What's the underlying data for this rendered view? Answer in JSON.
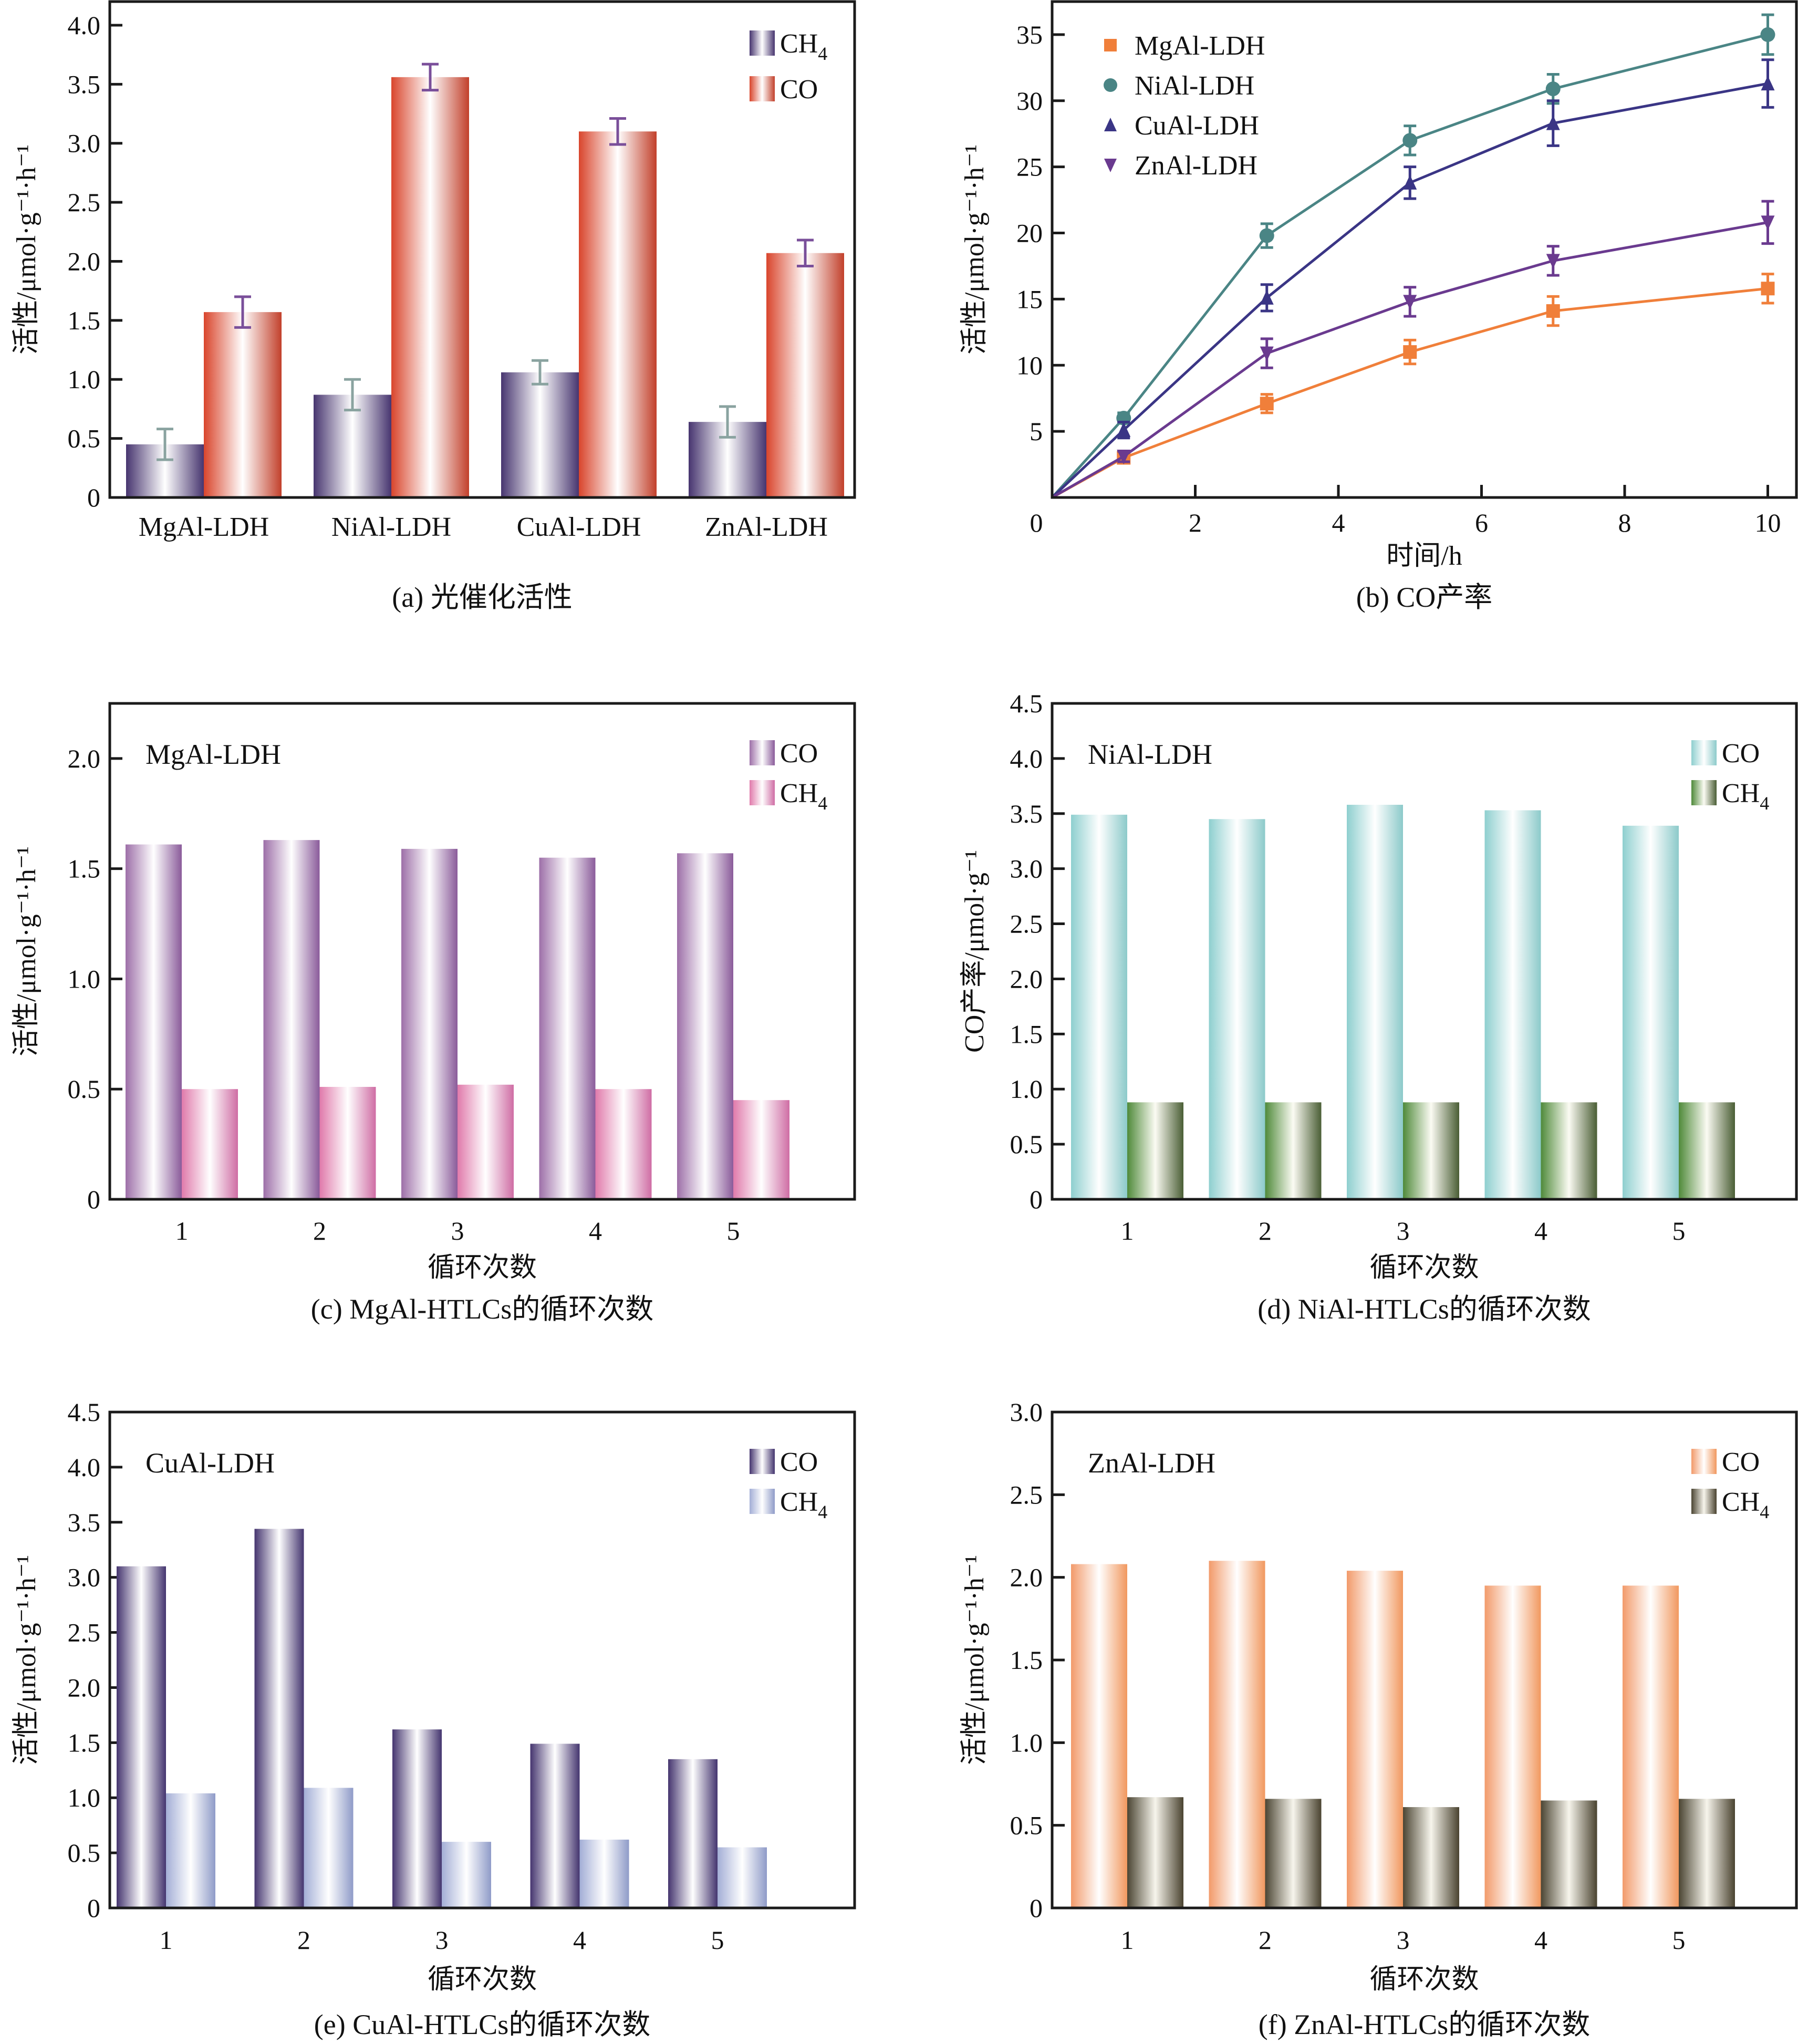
{
  "figure": {
    "panels": [
      "a",
      "b",
      "c",
      "d",
      "e",
      "f"
    ]
  },
  "chart_data": [
    {
      "id": "a",
      "type": "bar",
      "title": "",
      "caption": "(a) 光催化活性",
      "ylabel": "活性/μmol·g⁻¹·h⁻¹",
      "xlabel": "",
      "ylim": [
        0,
        4.2
      ],
      "yticks": [
        0,
        0.5,
        1.0,
        1.5,
        2.0,
        2.5,
        3.0,
        3.5,
        4.0
      ],
      "ytick_labels": [
        "0",
        "0.5",
        "1.0",
        "1.5",
        "2.0",
        "2.5",
        "3.0",
        "3.5",
        "4.0"
      ],
      "categories": [
        "MgAl-LDH",
        "NiAl-LDH",
        "CuAl-LDH",
        "ZnAl-LDH"
      ],
      "series": [
        {
          "name": "CH4",
          "label_main": "CH",
          "label_sub": "4",
          "values": [
            0.45,
            0.87,
            1.06,
            0.64
          ],
          "errors": [
            0.13,
            0.13,
            0.1,
            0.13
          ],
          "colors": [
            "#47356f",
            "#ffffff",
            "#47356f"
          ],
          "error_color": "#8aa3a0"
        },
        {
          "name": "CO",
          "label_main": "CO",
          "label_sub": "",
          "values": [
            1.57,
            3.56,
            3.1,
            2.07
          ],
          "errors": [
            0.13,
            0.11,
            0.11,
            0.11
          ],
          "colors": [
            "#d9452c",
            "#ffffff",
            "#c2402b"
          ],
          "error_color": "#7a4f9a"
        }
      ],
      "legend": "top-right",
      "grid": false
    },
    {
      "id": "b",
      "type": "line",
      "title": "",
      "caption": "(b) CO产率",
      "xlabel": "时间/h",
      "ylabel": "活性/μmol·g⁻¹·h⁻¹",
      "xlim": [
        0,
        10.4
      ],
      "ylim": [
        0,
        37.5
      ],
      "xticks": [
        0,
        2,
        4,
        6,
        8,
        10
      ],
      "xtick_labels": [
        "0",
        "2",
        "4",
        "6",
        "8",
        "10"
      ],
      "yticks": [
        5,
        10,
        15,
        20,
        25,
        30,
        35
      ],
      "ytick_labels": [
        "5",
        "10",
        "15",
        "20",
        "25",
        "30",
        "35"
      ],
      "x": [
        0,
        1,
        3,
        5,
        7,
        10
      ],
      "series": [
        {
          "name": "MgAl-LDH",
          "marker": "square",
          "color": "#f07f3a",
          "values": [
            0,
            3.0,
            7.1,
            11.0,
            14.1,
            15.8
          ],
          "errors": [
            0,
            0.4,
            0.7,
            0.9,
            1.1,
            1.1
          ]
        },
        {
          "name": "NiAl-LDH",
          "marker": "circle",
          "color": "#4a8585",
          "values": [
            0,
            6.0,
            19.8,
            27.0,
            30.9,
            35.0
          ],
          "errors": [
            0,
            0.4,
            0.9,
            1.1,
            1.1,
            1.5
          ]
        },
        {
          "name": "CuAl-LDH",
          "marker": "triangle-up",
          "color": "#3a3585",
          "values": [
            0,
            5.1,
            15.1,
            23.8,
            28.3,
            31.3
          ],
          "errors": [
            0,
            0.6,
            1.0,
            1.2,
            1.7,
            1.8
          ]
        },
        {
          "name": "ZnAl-LDH",
          "marker": "triangle-down",
          "color": "#6a3a8f",
          "values": [
            0,
            3.1,
            10.9,
            14.8,
            17.9,
            20.8
          ],
          "errors": [
            0,
            0.4,
            1.1,
            1.1,
            1.1,
            1.6
          ]
        }
      ],
      "legend": "top-left",
      "grid": false
    },
    {
      "id": "c",
      "type": "bar",
      "title": "MgAl-LDH",
      "caption": "(c) MgAl-HTLCs的循环次数",
      "xlabel": "循环次数",
      "ylabel": "活性/μmol·g⁻¹·h⁻¹",
      "ylim": [
        0,
        2.25
      ],
      "yticks": [
        0,
        0.5,
        1.0,
        1.5,
        2.0
      ],
      "ytick_labels": [
        "0",
        "0.5",
        "1.0",
        "1.5",
        "2.0"
      ],
      "categories": [
        "1",
        "2",
        "3",
        "4",
        "5"
      ],
      "series": [
        {
          "name": "CO",
          "label_main": "CO",
          "label_sub": "",
          "values": [
            1.61,
            1.63,
            1.59,
            1.55,
            1.57
          ],
          "colors": [
            "#9d6fa8",
            "#ffffff",
            "#8a5b9a"
          ]
        },
        {
          "name": "CH4",
          "label_main": "CH",
          "label_sub": "4",
          "values": [
            0.5,
            0.51,
            0.52,
            0.5,
            0.45
          ],
          "colors": [
            "#e07aab",
            "#ffffff",
            "#cf6da4"
          ]
        }
      ],
      "legend": "top-right",
      "grid": false
    },
    {
      "id": "d",
      "type": "bar",
      "title": "NiAl-LDH",
      "caption": "(d) NiAl-HTLCs的循环次数",
      "xlabel": "循环次数",
      "ylabel": "CO产率/μmol·g⁻¹",
      "ylim": [
        0,
        4.5
      ],
      "yticks": [
        0,
        0.5,
        1.0,
        1.5,
        2.0,
        2.5,
        3.0,
        3.5,
        4.0,
        4.5
      ],
      "ytick_labels": [
        "0",
        "0.5",
        "1.0",
        "1.5",
        "2.0",
        "2.5",
        "3.0",
        "3.5",
        "4.0",
        "4.5"
      ],
      "categories": [
        "1",
        "2",
        "3",
        "4",
        "5"
      ],
      "series": [
        {
          "name": "CO",
          "label_main": "CO",
          "label_sub": "",
          "values": [
            3.49,
            3.45,
            3.58,
            3.53,
            3.39
          ],
          "colors": [
            "#8ecfcf",
            "#ffffff",
            "#8ccaca"
          ]
        },
        {
          "name": "CH4",
          "label_main": "CH",
          "label_sub": "4",
          "values": [
            0.88,
            0.88,
            0.88,
            0.88,
            0.88
          ],
          "colors": [
            "#4f8a3a",
            "#fbfbf3",
            "#4a5e35"
          ]
        }
      ],
      "legend": "top-right",
      "grid": false
    },
    {
      "id": "e",
      "type": "bar",
      "title": "CuAl-LDH",
      "caption": "(e) CuAl-HTLCs的循环次数",
      "xlabel": "循环次数",
      "ylabel": "活性/μmol·g⁻¹·h⁻¹",
      "ylim": [
        0,
        4.5
      ],
      "yticks": [
        0,
        0.5,
        1.0,
        1.5,
        2.0,
        2.5,
        3.0,
        3.5,
        4.0,
        4.5
      ],
      "ytick_labels": [
        "0",
        "0.5",
        "1.0",
        "1.5",
        "2.0",
        "2.5",
        "3.0",
        "3.5",
        "4.0",
        "4.5"
      ],
      "categories": [
        "1",
        "2",
        "3",
        "4",
        "5"
      ],
      "series": [
        {
          "name": "CO",
          "label_main": "CO",
          "label_sub": "",
          "values": [
            3.1,
            3.44,
            1.62,
            1.49,
            1.35
          ],
          "colors": [
            "#45356f",
            "#ffffff",
            "#44356f"
          ]
        },
        {
          "name": "CH4",
          "label_main": "CH",
          "label_sub": "4",
          "values": [
            1.04,
            1.09,
            0.6,
            0.62,
            0.55
          ],
          "colors": [
            "#a3aed6",
            "#ffffff",
            "#8f9bc8"
          ]
        }
      ],
      "legend": "top-right",
      "grid": false
    },
    {
      "id": "f",
      "type": "bar",
      "title": "ZnAl-LDH",
      "caption": "(f) ZnAl-HTLCs的循环次数",
      "xlabel": "循环次数",
      "ylabel": "活性/μmol·g⁻¹·h⁻¹",
      "ylim": [
        0,
        3.0
      ],
      "yticks": [
        0,
        0.5,
        1.0,
        1.5,
        2.0,
        2.5,
        3.0
      ],
      "ytick_labels": [
        "0",
        "0.5",
        "1.0",
        "1.5",
        "2.0",
        "2.5",
        "3.0"
      ],
      "categories": [
        "1",
        "2",
        "3",
        "4",
        "5"
      ],
      "series": [
        {
          "name": "CO",
          "label_main": "CO",
          "label_sub": "",
          "values": [
            2.08,
            2.1,
            2.04,
            1.95,
            1.95
          ],
          "colors": [
            "#f29a6a",
            "#ffffff",
            "#f1985f"
          ]
        },
        {
          "name": "CH4",
          "label_main": "CH",
          "label_sub": "4",
          "values": [
            0.67,
            0.66,
            0.61,
            0.65,
            0.66
          ],
          "colors": [
            "#4b4533",
            "#f7f5ec",
            "#4a4330"
          ]
        }
      ],
      "legend": "top-right",
      "grid": false
    }
  ]
}
